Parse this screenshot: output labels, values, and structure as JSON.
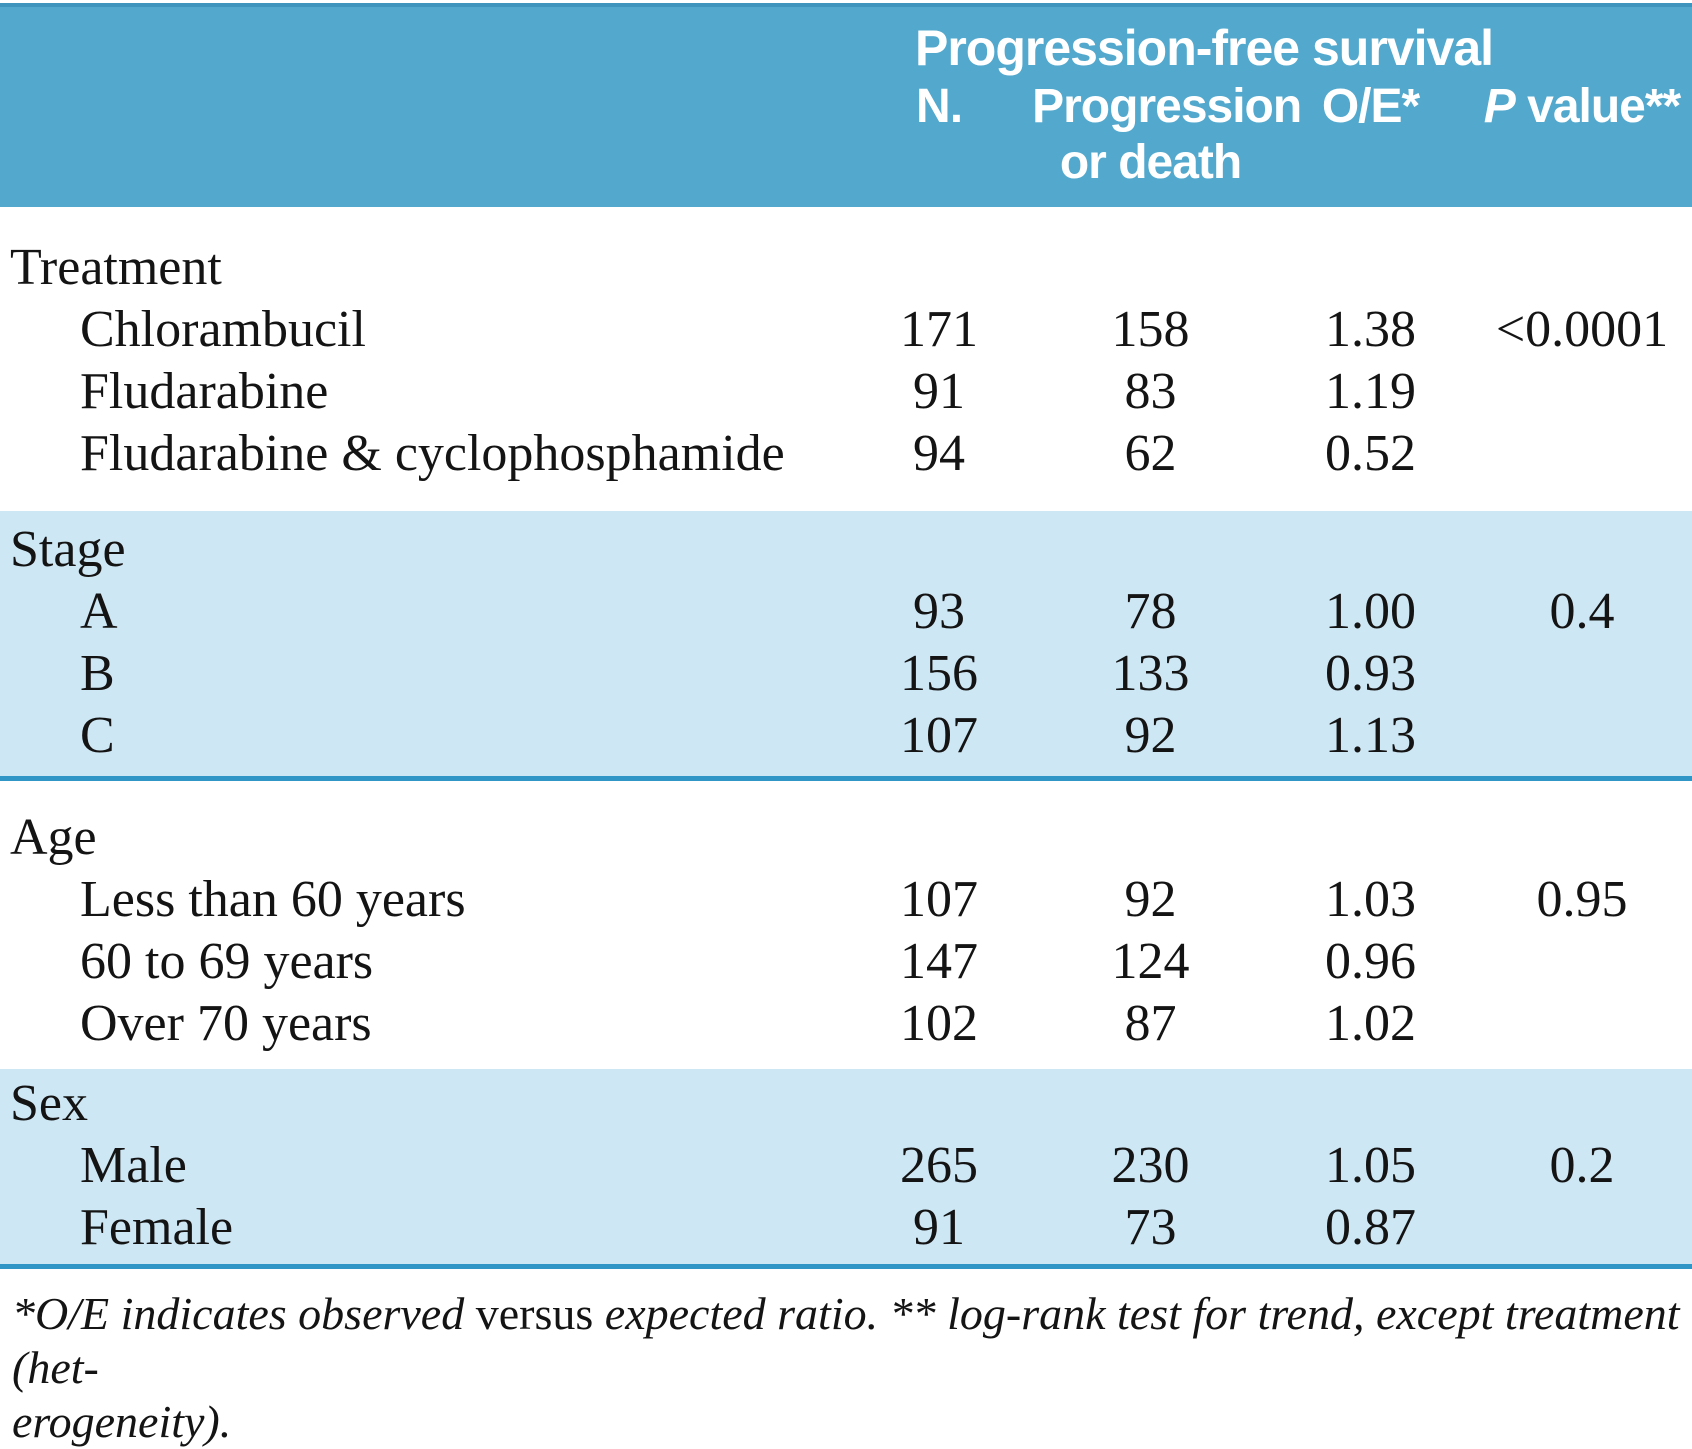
{
  "colors": {
    "header_blue": "#52a8cd",
    "band_light_blue": "#cee7f4",
    "rule_blue": "#2f96c6",
    "text": "#141414"
  },
  "table": {
    "header": {
      "span_title": "Progression-free survival",
      "col_n": "N.",
      "col_progression_line1": "Progression",
      "col_progression_line2": "or death",
      "col_oe": "O/E*",
      "col_p_italic": "P",
      "col_p_rest": " value**"
    },
    "sections": [
      {
        "label": "Treatment",
        "rows": [
          {
            "label": "Chlorambucil",
            "n": "171",
            "events": "158",
            "oe": "1.38",
            "p": "<0.0001"
          },
          {
            "label": "Fludarabine",
            "n": "91",
            "events": "83",
            "oe": "1.19",
            "p": ""
          },
          {
            "label": "Fludarabine & cyclophosphamide",
            "n": "94",
            "events": "62",
            "oe": "0.52",
            "p": ""
          }
        ]
      },
      {
        "label": "Stage",
        "rows": [
          {
            "label": "A",
            "n": "93",
            "events": "78",
            "oe": "1.00",
            "p": "0.4"
          },
          {
            "label": "B",
            "n": "156",
            "events": "133",
            "oe": "0.93",
            "p": ""
          },
          {
            "label": "C",
            "n": "107",
            "events": "92",
            "oe": "1.13",
            "p": ""
          }
        ]
      },
      {
        "label": "Age",
        "rows": [
          {
            "label": "Less than 60 years",
            "n": "107",
            "events": "92",
            "oe": "1.03",
            "p": "0.95"
          },
          {
            "label": "60 to 69 years",
            "n": "147",
            "events": "124",
            "oe": "0.96",
            "p": ""
          },
          {
            "label": "Over 70 years",
            "n": "102",
            "events": "87",
            "oe": "1.02",
            "p": ""
          }
        ]
      },
      {
        "label": "Sex",
        "rows": [
          {
            "label": "Male",
            "n": "265",
            "events": "230",
            "oe": "1.05",
            "p": "0.2"
          },
          {
            "label": "Female",
            "n": "91",
            "events": "73",
            "oe": "0.87",
            "p": ""
          }
        ]
      }
    ],
    "footnote": {
      "line1_pre": "*O/E indicates observed ",
      "line1_roman": "versus",
      "line1_post": " expected ratio. ** log-rank test for trend, except treatment (het-",
      "line2": "erogeneity)."
    }
  }
}
